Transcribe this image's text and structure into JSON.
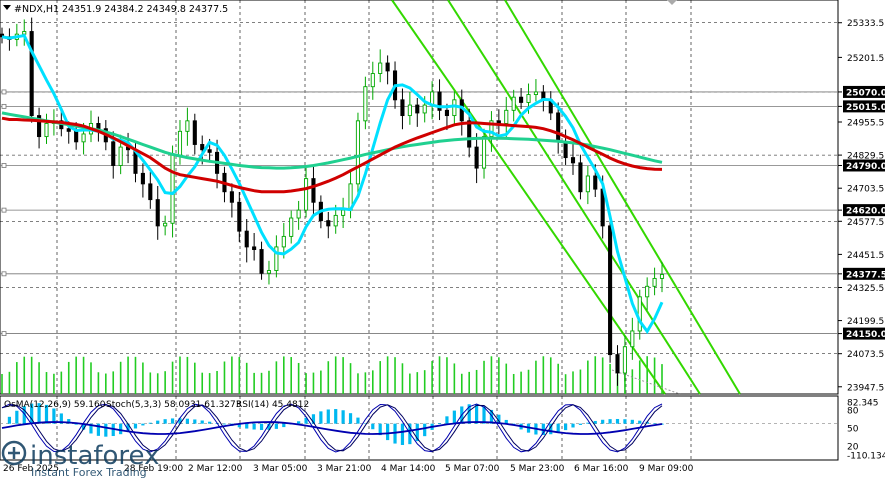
{
  "header": {
    "symbol": "#NDX,H1",
    "ohlc": "24351.9 24384.2 24349.8 24377.5"
  },
  "indicator_header": {
    "osma": "OsMA(12,26,9) 59.160",
    "stoch": "Stoch(5,3,3) 58.0931 61.3273",
    "rsi": "RSI(14) 45.4812"
  },
  "watermark": {
    "name": "instaforex",
    "tagline": "Instant Forex Trading"
  },
  "colors": {
    "bull": "#00a800",
    "bear": "#000000",
    "ma_fast": "#00e0ff",
    "ma_mid": "#20d090",
    "ma_slow": "#d00000",
    "channel": "#33d800",
    "price_box": "#000000",
    "osma_bars": "#00b8f0",
    "volume": "#22cc22",
    "stoch_main": "#0000b0",
    "stoch_signal": "#000060",
    "rsi": "#7000a0"
  },
  "chart_data": {
    "type": "line",
    "title": "#NDX,H1",
    "y_ticks": [
      25333.5,
      25201.5,
      25070.0,
      25015.0,
      24955.5,
      24829.5,
      24790.0,
      24703.5,
      24620.0,
      24577.5,
      24451.5,
      24377.5,
      24325.5,
      24199.5,
      24150.0,
      24073.5,
      23947.5
    ],
    "ylim": [
      23920,
      25420
    ],
    "x_labels": [
      "26 Feb 2025",
      "28 Feb 19:00",
      "2 Mar 12:00",
      "3 Mar 05:00",
      "3 Mar 21:00",
      "4 Mar 14:00",
      "5 Mar 07:00",
      "5 Mar 23:00",
      "6 Mar 16:00",
      "9 Mar 09:00"
    ],
    "levels": [
      25070.0,
      25015.0,
      24790.0,
      24620.0,
      24377.5,
      24150.0
    ],
    "series": [
      {
        "values": [
          25280,
          25270,
          25290,
          25300,
          24980,
          24900,
          24950,
          24960,
          24930,
          24920,
          24880,
          24910,
          24950,
          24930,
          24880,
          24790,
          24860,
          24850,
          24760,
          24720,
          24660,
          24560,
          24570,
          24830,
          24920,
          24960,
          24870,
          24850,
          24840,
          24760,
          24690,
          24650,
          24540,
          24480,
          24470,
          24380,
          24390,
          24480,
          24520,
          24590,
          24620,
          24740,
          24650,
          24580,
          24560,
          24600,
          24620,
          24720,
          24960,
          25090,
          25140,
          25180,
          25150,
          25040,
          24980,
          25020,
          24990,
          25020,
          25070,
          25000,
          24980,
          25040,
          24960,
          24860,
          24780,
          24900,
          24960,
          24950,
          25000,
          25050,
          25030,
          25060,
          25070,
          25040,
          24990,
          24880,
          24820,
          24800,
          24690,
          24750,
          24700,
          24560,
          24070,
          24000,
          24100,
          24160,
          24290,
          24330,
          24360,
          24375
        ]
      },
      {
        "values": [
          24970,
          24965,
          24965,
          24963,
          24962,
          24960,
          24958,
          24956,
          24954,
          24950,
          24946,
          24940,
          24930,
          24920,
          24908,
          24895,
          24880,
          24865,
          24850,
          24835,
          24820,
          24800,
          24780,
          24765,
          24755,
          24750,
          24745,
          24740,
          24735,
          24730,
          24722,
          24714,
          24706,
          24700,
          24694,
          24690,
          24690,
          24690,
          24690,
          24693,
          24697,
          24702,
          24710,
          24720,
          24730,
          24742,
          24755,
          24770,
          24785,
          24800,
          24815,
          24830,
          24845,
          24860,
          24872,
          24884,
          24895,
          24905,
          24915,
          24925,
          24935,
          24945,
          24950,
          24952,
          24952,
          24950,
          24948,
          24946,
          24944,
          24942,
          24940,
          24938,
          24935,
          24930,
          24922,
          24912,
          24900,
          24888,
          24874,
          24860,
          24846,
          24832,
          24818,
          24806,
          24796,
          24788,
          24782,
          24778,
          24776,
          24775
        ]
      },
      {
        "values": [
          24990,
          24985,
          24980,
          24975,
          24970,
          24965,
          24960,
          24955,
          24950,
          24945,
          24940,
          24935,
          24930,
          24925,
          24918,
          24910,
          24900,
          24890,
          24880,
          24870,
          24860,
          24850,
          24840,
          24832,
          24826,
          24820,
          24815,
          24810,
          24806,
          24802,
          24798,
          24794,
          24790,
          24787,
          24784,
          24782,
          24781,
          24780,
          24780,
          24781,
          24783,
          24786,
          24790,
          24795,
          24800,
          24806,
          24812,
          24818,
          24825,
          24832,
          24838,
          24844,
          24850,
          24856,
          24861,
          24866,
          24870,
          24874,
          24878,
          24882,
          24885,
          24888,
          24890,
          24892,
          24893,
          24894,
          24894,
          24894,
          24893,
          24892,
          24891,
          24890,
          24888,
          24886,
          24884,
          24882,
          24879,
          24876,
          24872,
          24868,
          24862,
          24856,
          24850,
          24843,
          24836,
          24829,
          24822,
          24815,
          24808,
          24802
        ]
      }
    ],
    "osma": {
      "name": "OsMA(12,26,9)",
      "last": 59.16,
      "ylim": [
        -110.134,
        82.345
      ],
      "ticks": [
        82.345,
        80,
        50,
        20,
        -110.134
      ]
    },
    "stoch": {
      "name": "Stoch(5,3,3)",
      "main": 58.0931,
      "signal": 61.3273
    },
    "rsi": {
      "name": "RSI(14)",
      "value": 45.4812
    }
  }
}
